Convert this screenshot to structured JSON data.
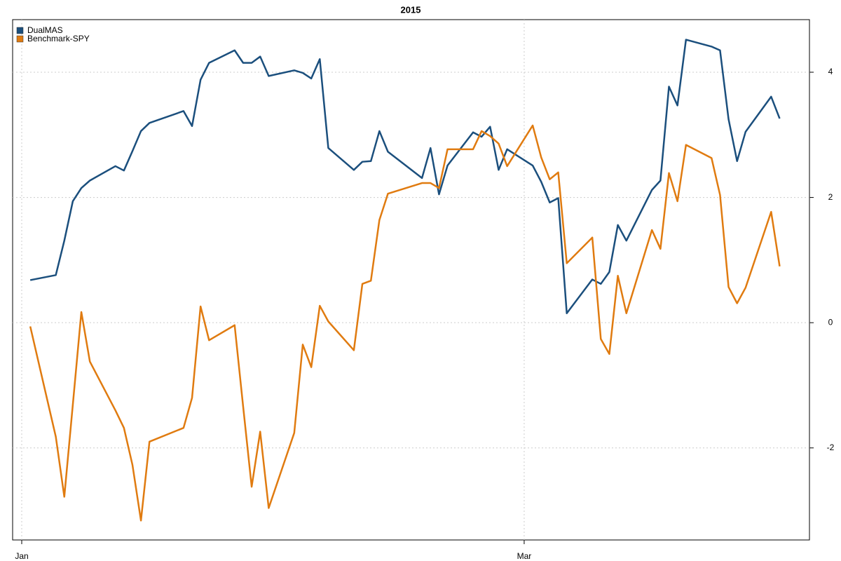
{
  "chart_data": {
    "type": "line",
    "title": "2015",
    "x": [
      1,
      4,
      5,
      6,
      7,
      8,
      11,
      12,
      13,
      14,
      15,
      19,
      20,
      21,
      22,
      25,
      26,
      27,
      28,
      29,
      32,
      33,
      34,
      35,
      36,
      39,
      40,
      41,
      42,
      43,
      47,
      48,
      49,
      50,
      53,
      54,
      55,
      56,
      57,
      60,
      61,
      62,
      63,
      64,
      67,
      68,
      69,
      70,
      71,
      74,
      75,
      76,
      77,
      78,
      81,
      82,
      83,
      84,
      85,
      88,
      89
    ],
    "xlim": [
      -1.07,
      92.5
    ],
    "xticks": [
      {
        "value": 0,
        "label": "Jan"
      },
      {
        "value": 59,
        "label": "Mar"
      }
    ],
    "ylim": [
      -3.47,
      4.84
    ],
    "yticks": [
      -2,
      0,
      2,
      4
    ],
    "grid": true,
    "legend": "topleft",
    "series": [
      {
        "name": "DualMAS",
        "color": "#1b4f7d",
        "values": [
          0.68,
          0.76,
          1.31,
          1.94,
          2.15,
          2.27,
          2.5,
          2.43,
          2.74,
          3.06,
          3.19,
          3.38,
          3.14,
          3.88,
          4.15,
          4.35,
          4.15,
          4.15,
          4.25,
          3.94,
          4.03,
          3.99,
          3.9,
          4.21,
          2.79,
          2.44,
          2.57,
          2.58,
          3.06,
          2.73,
          2.31,
          2.79,
          2.05,
          2.51,
          3.04,
          2.97,
          3.13,
          2.44,
          2.77,
          2.51,
          2.25,
          1.92,
          1.99,
          0.15,
          0.69,
          0.62,
          0.81,
          1.56,
          1.31,
          2.12,
          2.27,
          3.77,
          3.47,
          4.52,
          4.41,
          4.35,
          3.25,
          2.58,
          3.05,
          3.61,
          3.26
        ]
      },
      {
        "name": "Benchmark-SPY",
        "color": "#e07b10",
        "values": [
          -0.06,
          -1.82,
          -2.78,
          -1.31,
          0.17,
          -0.62,
          -1.4,
          -1.68,
          -2.27,
          -3.16,
          -1.9,
          -1.68,
          -1.2,
          0.26,
          -0.28,
          -0.04,
          -1.34,
          -2.62,
          -1.74,
          -2.96,
          -1.76,
          -0.35,
          -0.71,
          0.27,
          0.02,
          -0.44,
          0.62,
          0.67,
          1.64,
          2.06,
          2.23,
          2.23,
          2.15,
          2.77,
          2.77,
          3.06,
          2.98,
          2.86,
          2.5,
          3.15,
          2.64,
          2.29,
          2.4,
          0.95,
          1.36,
          -0.26,
          -0.5,
          0.75,
          0.15,
          1.48,
          1.18,
          2.39,
          1.94,
          2.84,
          2.63,
          2.04,
          0.57,
          0.31,
          0.56,
          1.77,
          0.9
        ]
      }
    ]
  }
}
